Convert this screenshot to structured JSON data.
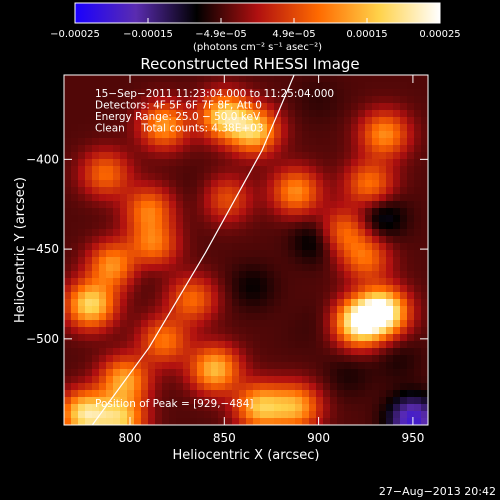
{
  "chart_data": {
    "type": "heatmap",
    "title": "Reconstructed RHESSI Image",
    "xlabel": "Heliocentric X (arcsec)",
    "ylabel": "Heliocentric Y (arcsec)",
    "xlim": [
      765,
      958
    ],
    "ylim": [
      -548,
      -353
    ],
    "x_ticks": [
      800,
      850,
      900,
      950
    ],
    "y_ticks": [
      -400,
      -450,
      -500
    ],
    "x_tick_labels": [
      "800",
      "850",
      "900",
      "950"
    ],
    "y_tick_labels": [
      "−400",
      "−450",
      "−500"
    ],
    "colorbar": {
      "min": -0.00025,
      "max": 0.00025,
      "tick_labels": [
        "−0.00025",
        "−0.00015",
        "−4.9e−05",
        "4.9e−05",
        "0.00015",
        "0.00025"
      ],
      "unit_label": "(photons cm⁻² s⁻¹ asec⁻²)",
      "colors": [
        "#1a00ff",
        "#5a2cb0",
        "#000000",
        "#b01010",
        "#ff6a00",
        "#ffd24a",
        "#ffffff"
      ]
    },
    "annotations": [
      "15−Sep−2011 11:23:04.000 to 11:25:04.000",
      "Detectors: 4F 5F 6F 7F 8F, Att 0",
      "Energy Range: 25.0 − 50.0 keV",
      "Clean     Total counts: 4.38E+03",
      "Position of Peak = [929,−484]"
    ],
    "peak": [
      929,
      -484
    ],
    "limb_curve": [
      [
        780,
        -548
      ],
      [
        810,
        -505
      ],
      [
        840,
        -452
      ],
      [
        870,
        -395
      ],
      [
        887,
        -353
      ]
    ],
    "blobs": [
      {
        "x": 934,
        "y": -485,
        "value": 0.00025
      },
      {
        "x": 921,
        "y": -491,
        "value": 0.00022
      },
      {
        "x": 779,
        "y": -481,
        "value": 0.00018
      },
      {
        "x": 776,
        "y": -542,
        "value": 0.00019
      },
      {
        "x": 795,
        "y": -545,
        "value": 0.00015
      },
      {
        "x": 797,
        "y": -523,
        "value": 0.00013
      },
      {
        "x": 845,
        "y": -517,
        "value": 0.00015
      },
      {
        "x": 850,
        "y": -376,
        "value": 0.00017
      },
      {
        "x": 866,
        "y": -384,
        "value": 0.00016
      },
      {
        "x": 818,
        "y": -381,
        "value": 0.00012
      },
      {
        "x": 791,
        "y": -459,
        "value": 0.00012
      },
      {
        "x": 812,
        "y": -448,
        "value": 0.0001
      },
      {
        "x": 810,
        "y": -428,
        "value": 9e-05
      },
      {
        "x": 787,
        "y": -408,
        "value": 8e-05
      },
      {
        "x": 869,
        "y": -538,
        "value": 0.00015
      },
      {
        "x": 888,
        "y": -538,
        "value": 0.00013
      },
      {
        "x": 888,
        "y": -418,
        "value": 0.00011
      },
      {
        "x": 935,
        "y": -386,
        "value": 0.00011
      },
      {
        "x": 927,
        "y": -414,
        "value": 9e-05
      },
      {
        "x": 913,
        "y": -440,
        "value": 8e-05
      },
      {
        "x": 925,
        "y": -455,
        "value": 8e-05
      },
      {
        "x": 833,
        "y": -478,
        "value": 8e-05
      },
      {
        "x": 818,
        "y": -501,
        "value": 9e-05
      },
      {
        "x": 851,
        "y": -422,
        "value": 6e-05
      },
      {
        "x": 805,
        "y": -458,
        "value": -8e-05
      },
      {
        "x": 899,
        "y": -445,
        "value": -0.0001
      },
      {
        "x": 933,
        "y": -432,
        "value": -0.00011
      },
      {
        "x": 950,
        "y": -545,
        "value": -0.0002
      },
      {
        "x": 942,
        "y": -511,
        "value": -7e-05
      },
      {
        "x": 865,
        "y": -471,
        "value": -8e-05
      },
      {
        "x": 839,
        "y": -419,
        "value": -6e-05
      },
      {
        "x": 905,
        "y": -490,
        "value": -6e-05
      },
      {
        "x": 916,
        "y": -520,
        "value": -7e-05
      },
      {
        "x": 890,
        "y": -498,
        "value": -5e-05
      },
      {
        "x": 900,
        "y": -367,
        "value": -6e-05
      }
    ]
  },
  "footer": {
    "timestamp": "27−Aug−2013 20:42"
  }
}
